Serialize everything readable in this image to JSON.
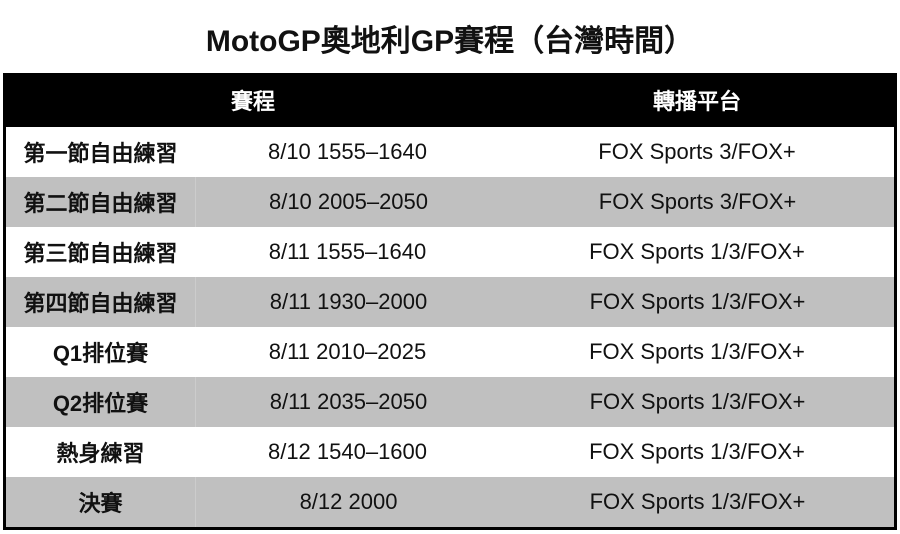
{
  "title": "MotoGP奧地利GP賽程（台灣時間）",
  "headers": {
    "schedule": "賽程",
    "broadcast": "轉播平台"
  },
  "rows": [
    {
      "session": "第一節自由練習",
      "time": "8/10 1555–1640",
      "channel": "FOX Sports 3/FOX+"
    },
    {
      "session": "第二節自由練習",
      "time": "8/10 2005–2050",
      "channel": "FOX Sports 3/FOX+"
    },
    {
      "session": "第三節自由練習",
      "time": "8/11 1555–1640",
      "channel": "FOX Sports 1/3/FOX+"
    },
    {
      "session": "第四節自由練習",
      "time": "8/11 1930–2000",
      "channel": "FOX Sports 1/3/FOX+"
    },
    {
      "session": "Q1排位賽",
      "time": "8/11 2010–2025",
      "channel": "FOX Sports 1/3/FOX+"
    },
    {
      "session": "Q2排位賽",
      "time": "8/11 2035–2050",
      "channel": "FOX Sports 1/3/FOX+"
    },
    {
      "session": "熱身練習",
      "time": "8/12 1540–1600",
      "channel": "FOX Sports 1/3/FOX+"
    },
    {
      "session": "決賽",
      "time": "8/12 2000",
      "channel": "FOX Sports 1/3/FOX+"
    }
  ],
  "colors": {
    "header_bg": "#000000",
    "alt_row": "#c0c0c0"
  }
}
